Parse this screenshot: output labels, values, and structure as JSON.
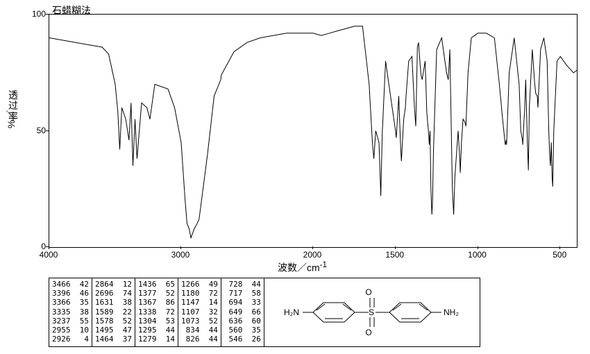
{
  "chart": {
    "type": "line",
    "title": "石蜡糊法",
    "xlabel": "波数／cm",
    "xlabel_sup": "-1",
    "ylabel_top": "透",
    "ylabel_mid": "过",
    "ylabel_bot": "率",
    "ylabel_unit": "%／",
    "xlim": [
      4000,
      400
    ],
    "ylim": [
      0,
      100
    ],
    "xticks": [
      4000,
      3000,
      2000,
      1500,
      1000,
      500
    ],
    "yticks": [
      0,
      50,
      100
    ],
    "background_color": "#ffffff",
    "line_color": "#000000",
    "axis_color": "#000000",
    "line_width": 1,
    "title_fontsize": 14,
    "label_fontsize": 14,
    "tick_fontsize": 12,
    "spectrum": [
      [
        4000,
        90
      ],
      [
        3900,
        89
      ],
      [
        3800,
        88
      ],
      [
        3700,
        87
      ],
      [
        3600,
        86
      ],
      [
        3550,
        83
      ],
      [
        3500,
        70
      ],
      [
        3480,
        58
      ],
      [
        3466,
        42
      ],
      [
        3450,
        60
      ],
      [
        3420,
        55
      ],
      [
        3396,
        46
      ],
      [
        3380,
        62
      ],
      [
        3366,
        35
      ],
      [
        3350,
        55
      ],
      [
        3335,
        38
      ],
      [
        3300,
        62
      ],
      [
        3260,
        60
      ],
      [
        3237,
        55
      ],
      [
        3200,
        70
      ],
      [
        3100,
        68
      ],
      [
        3050,
        60
      ],
      [
        3000,
        45
      ],
      [
        2970,
        20
      ],
      [
        2955,
        10
      ],
      [
        2940,
        8
      ],
      [
        2926,
        4
      ],
      [
        2900,
        8
      ],
      [
        2880,
        10
      ],
      [
        2864,
        12
      ],
      [
        2800,
        40
      ],
      [
        2750,
        65
      ],
      [
        2700,
        72
      ],
      [
        2696,
        74
      ],
      [
        2600,
        84
      ],
      [
        2500,
        88
      ],
      [
        2400,
        90
      ],
      [
        2300,
        91
      ],
      [
        2200,
        92
      ],
      [
        2100,
        92
      ],
      [
        2000,
        92
      ],
      [
        1950,
        91
      ],
      [
        1900,
        92
      ],
      [
        1850,
        93
      ],
      [
        1800,
        94
      ],
      [
        1750,
        95
      ],
      [
        1700,
        95
      ],
      [
        1660,
        70
      ],
      [
        1640,
        45
      ],
      [
        1631,
        38
      ],
      [
        1620,
        50
      ],
      [
        1600,
        45
      ],
      [
        1589,
        22
      ],
      [
        1580,
        50
      ],
      [
        1578,
        52
      ],
      [
        1560,
        80
      ],
      [
        1520,
        60
      ],
      [
        1500,
        50
      ],
      [
        1495,
        47
      ],
      [
        1480,
        65
      ],
      [
        1470,
        45
      ],
      [
        1464,
        37
      ],
      [
        1450,
        55
      ],
      [
        1440,
        60
      ],
      [
        1436,
        65
      ],
      [
        1420,
        80
      ],
      [
        1400,
        82
      ],
      [
        1385,
        60
      ],
      [
        1377,
        52
      ],
      [
        1370,
        75
      ],
      [
        1367,
        86
      ],
      [
        1360,
        88
      ],
      [
        1350,
        78
      ],
      [
        1345,
        74
      ],
      [
        1338,
        72
      ],
      [
        1320,
        80
      ],
      [
        1310,
        58
      ],
      [
        1304,
        53
      ],
      [
        1298,
        48
      ],
      [
        1295,
        44
      ],
      [
        1290,
        50
      ],
      [
        1285,
        25
      ],
      [
        1279,
        14
      ],
      [
        1275,
        20
      ],
      [
        1270,
        40
      ],
      [
        1266,
        49
      ],
      [
        1250,
        85
      ],
      [
        1220,
        90
      ],
      [
        1200,
        80
      ],
      [
        1190,
        75
      ],
      [
        1180,
        72
      ],
      [
        1170,
        85
      ],
      [
        1155,
        25
      ],
      [
        1147,
        14
      ],
      [
        1140,
        30
      ],
      [
        1120,
        50
      ],
      [
        1110,
        38
      ],
      [
        1107,
        32
      ],
      [
        1100,
        45
      ],
      [
        1090,
        55
      ],
      [
        1080,
        54
      ],
      [
        1073,
        52
      ],
      [
        1060,
        75
      ],
      [
        1040,
        90
      ],
      [
        1000,
        92
      ],
      [
        950,
        92
      ],
      [
        900,
        90
      ],
      [
        870,
        70
      ],
      [
        850,
        55
      ],
      [
        840,
        48
      ],
      [
        834,
        44
      ],
      [
        828,
        46
      ],
      [
        826,
        44
      ],
      [
        810,
        75
      ],
      [
        780,
        90
      ],
      [
        750,
        70
      ],
      [
        740,
        50
      ],
      [
        730,
        46
      ],
      [
        728,
        44
      ],
      [
        722,
        52
      ],
      [
        720,
        55
      ],
      [
        717,
        58
      ],
      [
        710,
        72
      ],
      [
        700,
        45
      ],
      [
        694,
        33
      ],
      [
        688,
        60
      ],
      [
        670,
        85
      ],
      [
        655,
        70
      ],
      [
        649,
        66
      ],
      [
        640,
        65
      ],
      [
        636,
        60
      ],
      [
        620,
        85
      ],
      [
        600,
        90
      ],
      [
        580,
        80
      ],
      [
        570,
        50
      ],
      [
        565,
        40
      ],
      [
        560,
        35
      ],
      [
        555,
        45
      ],
      [
        550,
        30
      ],
      [
        546,
        26
      ],
      [
        540,
        50
      ],
      [
        520,
        80
      ],
      [
        500,
        82
      ],
      [
        460,
        78
      ],
      [
        420,
        75
      ],
      [
        400,
        76
      ]
    ]
  },
  "peaks_table": {
    "columns": [
      [
        [
          3466,
          42
        ],
        [
          3396,
          46
        ],
        [
          3366,
          35
        ],
        [
          3335,
          38
        ],
        [
          3237,
          55
        ],
        [
          2955,
          10
        ],
        [
          2926,
          4
        ]
      ],
      [
        [
          2864,
          12
        ],
        [
          2696,
          74
        ],
        [
          1631,
          38
        ],
        [
          1589,
          22
        ],
        [
          1578,
          52
        ],
        [
          1495,
          47
        ],
        [
          1464,
          37
        ]
      ],
      [
        [
          1436,
          65
        ],
        [
          1377,
          52
        ],
        [
          1367,
          86
        ],
        [
          1338,
          72
        ],
        [
          1304,
          53
        ],
        [
          1295,
          44
        ],
        [
          1279,
          14
        ]
      ],
      [
        [
          1266,
          49
        ],
        [
          1180,
          72
        ],
        [
          1147,
          14
        ],
        [
          1107,
          32
        ],
        [
          1073,
          52
        ],
        [
          834,
          44
        ],
        [
          826,
          44
        ]
      ],
      [
        [
          728,
          44
        ],
        [
          717,
          58
        ],
        [
          694,
          33
        ],
        [
          649,
          66
        ],
        [
          636,
          60
        ],
        [
          560,
          35
        ],
        [
          546,
          26
        ]
      ]
    ],
    "font_size": 11,
    "border_color": "#000000"
  },
  "molecule": {
    "label_left": "H₂N",
    "label_right": "NH₂",
    "label_top": "O",
    "label_bottom": "O",
    "label_center": "S",
    "stroke": "#000000"
  }
}
